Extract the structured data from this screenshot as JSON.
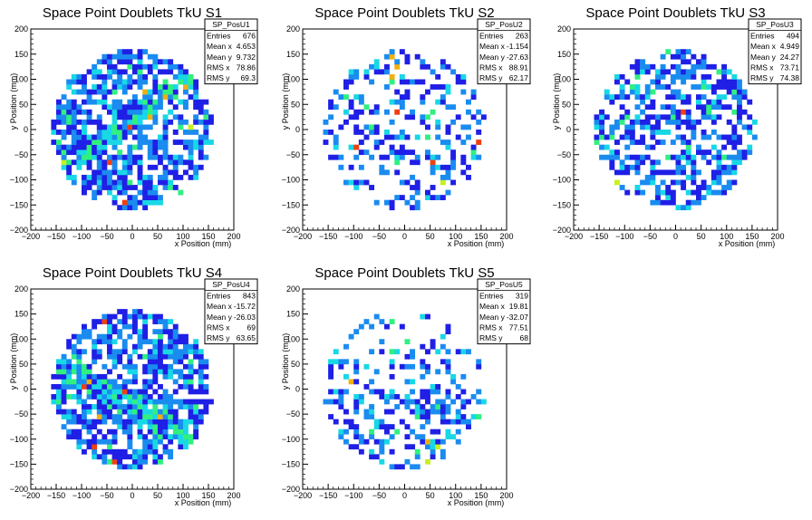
{
  "chart_data": [
    {
      "type": "heatmap",
      "title": "Space Point Doublets TkU S1",
      "xlabel": "x Position (mm)",
      "ylabel": "y Position (mm)",
      "xlim": [
        -200,
        200
      ],
      "ylim": [
        -200,
        200
      ],
      "xticks": [
        "−200",
        "−150",
        "−100",
        "−50",
        "0",
        "50",
        "100",
        "150",
        "200"
      ],
      "yticks": [
        "−200",
        "−150",
        "−100",
        "−50",
        "0",
        "50",
        "100",
        "150",
        "200"
      ],
      "stats": {
        "name": "SP_PosU1",
        "rows": [
          [
            "Entries",
            "676"
          ],
          [
            "Mean x",
            "4.653"
          ],
          [
            "Mean y",
            "9.732"
          ],
          [
            "RMS x",
            "78.86"
          ],
          [
            "RMS y",
            "69.3"
          ]
        ]
      },
      "density": "high",
      "band": "diagonal",
      "seed": 11
    },
    {
      "type": "heatmap",
      "title": "Space Point Doublets TkU S2",
      "xlabel": "x Position (mm)",
      "ylabel": "y Position (mm)",
      "xlim": [
        -200,
        200
      ],
      "ylim": [
        -200,
        200
      ],
      "xticks": [
        "−200",
        "−150",
        "−100",
        "−50",
        "0",
        "50",
        "100",
        "150",
        "200"
      ],
      "yticks": [
        "−200",
        "−150",
        "−100",
        "−50",
        "0",
        "50",
        "100",
        "150",
        "200"
      ],
      "stats": {
        "name": "SP_PosU2",
        "rows": [
          [
            "Entries",
            "263"
          ],
          [
            "Mean x",
            "-1.154"
          ],
          [
            "Mean y",
            "-27.63"
          ],
          [
            "RMS x",
            "88.91"
          ],
          [
            "RMS y",
            "62.17"
          ]
        ]
      },
      "density": "low",
      "band": "none",
      "seed": 23
    },
    {
      "type": "heatmap",
      "title": "Space Point Doublets TkU S3",
      "xlabel": "x Position (mm)",
      "ylabel": "y Position (mm)",
      "xlim": [
        -200,
        200
      ],
      "ylim": [
        -200,
        200
      ],
      "xticks": [
        "−200",
        "−150",
        "−100",
        "−50",
        "0",
        "50",
        "100",
        "150",
        "200"
      ],
      "yticks": [
        "−200",
        "−150",
        "−100",
        "−50",
        "0",
        "50",
        "100",
        "150",
        "200"
      ],
      "stats": {
        "name": "SP_PosU3",
        "rows": [
          [
            "Entries",
            "494"
          ],
          [
            "Mean x",
            "4.949"
          ],
          [
            "Mean y",
            "24.27"
          ],
          [
            "RMS x",
            "73.71"
          ],
          [
            "RMS y",
            "74.38"
          ]
        ]
      },
      "density": "medium",
      "band": "none",
      "seed": 37
    },
    {
      "type": "heatmap",
      "title": "Space Point Doublets TkU S4",
      "xlabel": "x Position (mm)",
      "ylabel": "y Position (mm)",
      "xlim": [
        -200,
        200
      ],
      "ylim": [
        -200,
        200
      ],
      "xticks": [
        "−200",
        "−150",
        "−100",
        "−50",
        "0",
        "50",
        "100",
        "150",
        "200"
      ],
      "yticks": [
        "−200",
        "−150",
        "−100",
        "−50",
        "0",
        "50",
        "100",
        "150",
        "200"
      ],
      "stats": {
        "name": "SP_PosU4",
        "rows": [
          [
            "Entries",
            "843"
          ],
          [
            "Mean x",
            "-15.72"
          ],
          [
            "Mean y",
            "-26.03"
          ],
          [
            "RMS x",
            "69"
          ],
          [
            "RMS y",
            "63.65"
          ]
        ]
      },
      "density": "high",
      "band": "diagonal-down",
      "seed": 53
    },
    {
      "type": "heatmap",
      "title": "Space Point Doublets TkU S5",
      "xlabel": "x Position (mm)",
      "ylabel": "y Position (mm)",
      "xlim": [
        -200,
        200
      ],
      "ylim": [
        -200,
        200
      ],
      "xticks": [
        "−200",
        "−150",
        "−100",
        "−50",
        "0",
        "50",
        "100",
        "150",
        "200"
      ],
      "yticks": [
        "−200",
        "−150",
        "−100",
        "−50",
        "0",
        "50",
        "100",
        "150",
        "200"
      ],
      "stats": {
        "name": "SP_PosU5",
        "rows": [
          [
            "Entries",
            "319"
          ],
          [
            "Mean x",
            "19.81"
          ],
          [
            "Mean y",
            "-32.07"
          ],
          [
            "RMS x",
            "77.51"
          ],
          [
            "RMS y",
            "68"
          ]
        ]
      },
      "density": "low",
      "band": "lower",
      "seed": 71
    }
  ],
  "palette": [
    "#1f1fe6",
    "#1a8cf0",
    "#18d8e6",
    "#30f080",
    "#c8f020",
    "#f0b010",
    "#f04010",
    "#c00000"
  ]
}
